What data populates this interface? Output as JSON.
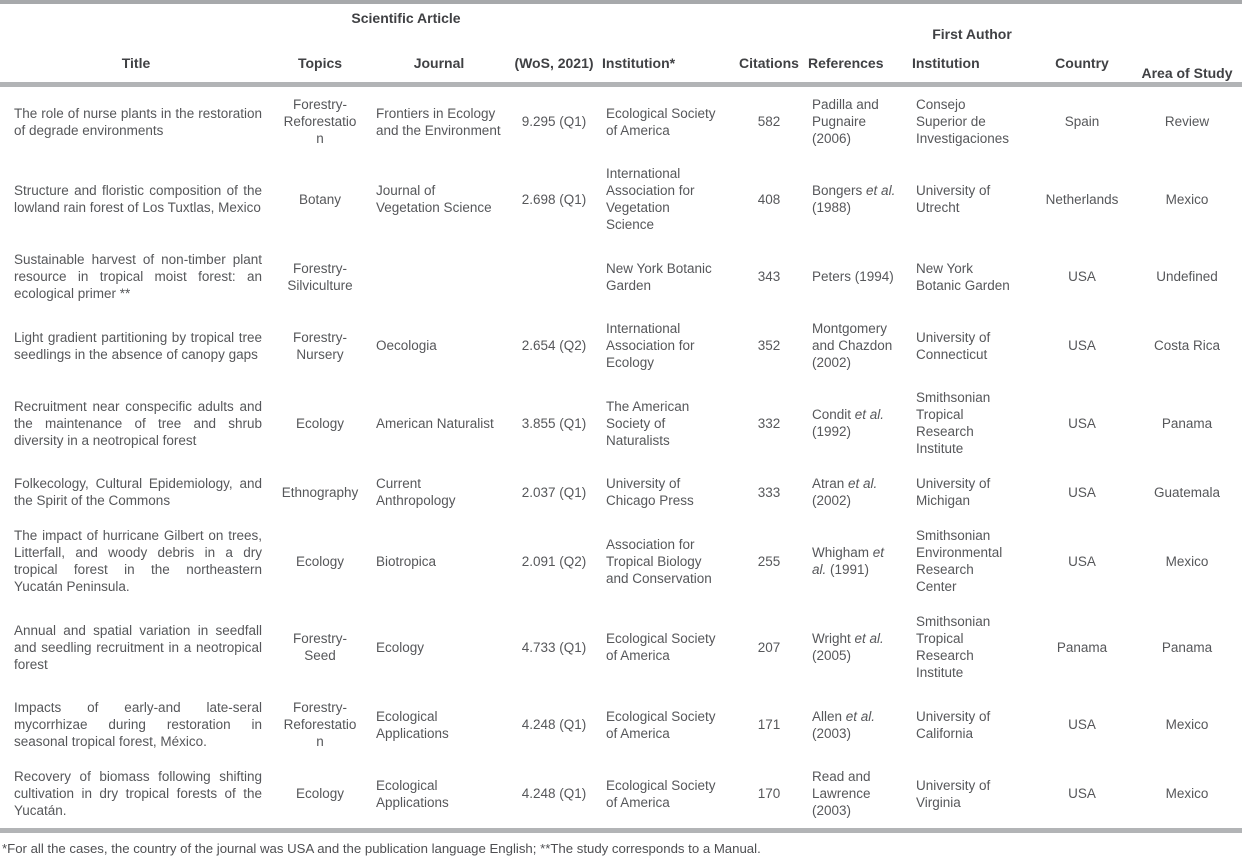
{
  "table": {
    "group_headers": {
      "scientific_article": "Scientific Article",
      "first_author": "First Author"
    },
    "columns": [
      {
        "key": "title",
        "label": "Title",
        "align": "justify",
        "header_align": "center"
      },
      {
        "key": "topics",
        "label": "Topics",
        "align": "center",
        "header_align": "center"
      },
      {
        "key": "journal",
        "label": "Journal",
        "align": "left",
        "header_align": "center"
      },
      {
        "key": "wos",
        "label": "(WoS, 2021)",
        "align": "center",
        "header_align": "center"
      },
      {
        "key": "institution",
        "label": "Institution*",
        "align": "left",
        "header_align": "left"
      },
      {
        "key": "citations",
        "label": "Citations",
        "align": "center",
        "header_align": "center"
      },
      {
        "key": "references",
        "label": "References",
        "align": "left",
        "header_align": "left"
      },
      {
        "key": "fa_institution",
        "label": "Institution",
        "align": "left",
        "header_align": "left"
      },
      {
        "key": "country",
        "label": "Country",
        "align": "center",
        "header_align": "center"
      },
      {
        "key": "area",
        "label": "Area of Study",
        "align": "center",
        "header_align": "center"
      }
    ],
    "rows": [
      {
        "title": "The role of nurse plants in the restoration of degrade environments",
        "topics": "Forestry-Reforestation",
        "journal": "Frontiers in Ecology and the Environment",
        "wos": "9.295 (Q1)",
        "institution": "Ecological Society of America",
        "citations": "582",
        "references": "Padilla and Pugnaire (2006)",
        "fa_institution": "Consejo Superior de Investigaciones",
        "country": "Spain",
        "area": "Review"
      },
      {
        "title": "Structure and floristic composition of the lowland rain forest of Los Tuxtlas, Mexico",
        "topics": "Botany",
        "journal": "Journal of Vegetation Science",
        "wos": "2.698 (Q1)",
        "institution": "International Association for Vegetation Science",
        "citations": "408",
        "references": "Bongers et al. (1988)",
        "fa_institution": "University of Utrecht",
        "country": "Netherlands",
        "area": "Mexico"
      },
      {
        "title": "Sustainable harvest of non-timber plant resource in tropical moist forest: an ecological primer **",
        "topics": "Forestry-Silviculture",
        "journal": "",
        "wos": "",
        "institution": "New York Botanic Garden",
        "citations": "343",
        "references": "Peters (1994)",
        "fa_institution": "New York Botanic Garden",
        "country": "USA",
        "area": "Undefined"
      },
      {
        "title": "Light gradient partitioning by tropical tree seedlings in the absence of canopy gaps",
        "topics": "Forestry-Nursery",
        "journal": "Oecologia",
        "wos": "2.654 (Q2)",
        "institution": "International Association for Ecology",
        "citations": "352",
        "references": "Montgomery and Chazdon (2002)",
        "fa_institution": "University of Connecticut",
        "country": "USA",
        "area": "Costa Rica"
      },
      {
        "title": "Recruitment near conspecific adults and the maintenance of tree and shrub diversity in a neotropical forest",
        "topics": "Ecology",
        "journal": "American Naturalist",
        "wos": "3.855 (Q1)",
        "institution": "The American Society of Naturalists",
        "citations": "332",
        "references": "Condit et al. (1992)",
        "fa_institution": "Smithsonian Tropical Research Institute",
        "country": "USA",
        "area": "Panama"
      },
      {
        "title": "Folkecology, Cultural Epidemiology, and the Spirit of the Commons",
        "topics": "Ethnography",
        "journal": "Current Anthropology",
        "wos": "2.037 (Q1)",
        "institution": "University of Chicago Press",
        "citations": "333",
        "references": "Atran et al. (2002)",
        "fa_institution": "University of Michigan",
        "country": "USA",
        "area": "Guatemala"
      },
      {
        "title": "The impact of hurricane Gilbert on trees, Litterfall, and woody debris in a dry tropical forest in the northeastern Yucatán Peninsula.",
        "topics": "Ecology",
        "journal": "Biotropica",
        "wos": "2.091 (Q2)",
        "institution": "Association for Tropical Biology and Conservation",
        "citations": "255",
        "references": "Whigham et al. (1991)",
        "fa_institution": "Smithsonian Environmental Research Center",
        "country": "USA",
        "area": "Mexico"
      },
      {
        "title": "Annual and spatial variation in seedfall and seedling recruitment in a neotropical forest",
        "topics": "Forestry-Seed",
        "journal": "Ecology",
        "wos": "4.733 (Q1)",
        "institution": "Ecological Society of America",
        "citations": "207",
        "references": "Wright et al. (2005)",
        "fa_institution": "Smithsonian Tropical Research Institute",
        "country": "Panama",
        "area": "Panama"
      },
      {
        "title": "Impacts of early-and late-seral mycorrhizae during restoration in seasonal tropical forest, México.",
        "topics": "Forestry-Reforestation",
        "journal": "Ecological Applications",
        "wos": "4.248 (Q1)",
        "institution": "Ecological Society of America",
        "citations": "171",
        "references": "Allen et al. (2003)",
        "fa_institution": "University of California",
        "country": "USA",
        "area": "Mexico"
      },
      {
        "title": "Recovery of biomass following shifting cultivation in dry tropical forests of the Yucatán.",
        "topics": "Ecology",
        "journal": "Ecological Applications",
        "wos": "4.248 (Q1)",
        "institution": "Ecological Society of America",
        "citations": "170",
        "references": "Read and Lawrence (2003)",
        "fa_institution": "University of Virginia",
        "country": "USA",
        "area": "Mexico"
      }
    ],
    "footnote": "*For all the cases, the country of the journal was USA and the publication language English; **The study corresponds to a Manual."
  }
}
